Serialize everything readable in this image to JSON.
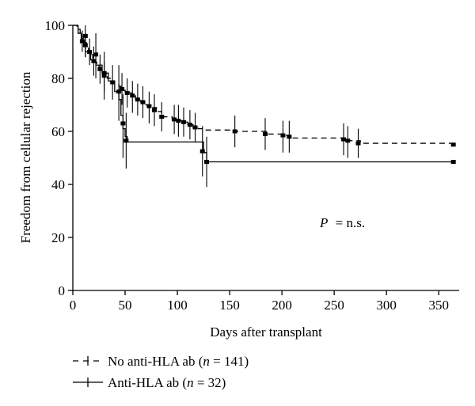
{
  "chart_data": {
    "type": "line",
    "title": "",
    "xlabel": "Days after transplant",
    "ylabel": "Freedom from cellular rejection",
    "xlim": [
      0,
      365
    ],
    "ylim": [
      0,
      100
    ],
    "xticks": [
      0,
      50,
      100,
      150,
      200,
      250,
      300,
      350
    ],
    "yticks": [
      0,
      20,
      40,
      60,
      80,
      100
    ],
    "grid": false,
    "legend_position": "bottom-left",
    "annotation": {
      "p_label": "P",
      "p_value": "= n.s."
    },
    "series": [
      {
        "name_prefix": "No anti-HLA ab (",
        "n_symbol": "n",
        "n_text": " = 141)",
        "style": "dashed",
        "x": [
          0,
          4,
          7,
          9,
          11,
          13,
          15,
          17,
          19,
          21,
          23,
          25,
          27,
          30,
          33,
          36,
          40,
          44,
          46,
          48,
          50,
          53,
          56,
          60,
          65,
          70,
          75,
          80,
          85,
          95,
          100,
          105,
          110,
          115,
          120,
          125,
          155,
          185,
          200,
          210,
          260,
          275,
          365
        ],
        "y": [
          100,
          98.5,
          97,
          95,
          93.5,
          92,
          90.5,
          89,
          87.5,
          86,
          85,
          84,
          82.5,
          81,
          80,
          79,
          78,
          77,
          76,
          75.5,
          75,
          74.5,
          73.5,
          72,
          71,
          70,
          69,
          67.5,
          65.5,
          64.5,
          64,
          63.5,
          62.5,
          61.5,
          61,
          60.5,
          60,
          59,
          58.5,
          57.5,
          56.5,
          55.5,
          55
        ],
        "censored": [
          {
            "x": 9,
            "y": 94,
            "lo": 90,
            "hi": 98
          },
          {
            "x": 12,
            "y": 92.5,
            "lo": 88,
            "hi": 97
          },
          {
            "x": 16,
            "y": 90,
            "lo": 85,
            "hi": 95
          },
          {
            "x": 20,
            "y": 86.5,
            "lo": 81,
            "hi": 92
          },
          {
            "x": 26,
            "y": 83.5,
            "lo": 78,
            "hi": 89
          },
          {
            "x": 30,
            "y": 81,
            "lo": 75,
            "hi": 86
          },
          {
            "x": 38,
            "y": 78.5,
            "lo": 72,
            "hi": 85
          },
          {
            "x": 47,
            "y": 76,
            "lo": 70,
            "hi": 82
          },
          {
            "x": 52,
            "y": 74.5,
            "lo": 69,
            "hi": 80
          },
          {
            "x": 57,
            "y": 73.5,
            "lo": 67,
            "hi": 79
          },
          {
            "x": 62,
            "y": 72,
            "lo": 66,
            "hi": 78
          },
          {
            "x": 67,
            "y": 71,
            "lo": 65,
            "hi": 77
          },
          {
            "x": 73,
            "y": 69.5,
            "lo": 63,
            "hi": 75
          },
          {
            "x": 78,
            "y": 68,
            "lo": 62,
            "hi": 74
          },
          {
            "x": 85,
            "y": 65.5,
            "lo": 60,
            "hi": 71
          },
          {
            "x": 97,
            "y": 64.5,
            "lo": 59,
            "hi": 70
          },
          {
            "x": 101,
            "y": 64,
            "lo": 58,
            "hi": 70
          },
          {
            "x": 106,
            "y": 63.5,
            "lo": 58,
            "hi": 69
          },
          {
            "x": 112,
            "y": 62.5,
            "lo": 57,
            "hi": 68
          },
          {
            "x": 117,
            "y": 61.5,
            "lo": 56,
            "hi": 67
          },
          {
            "x": 155,
            "y": 60,
            "lo": 54,
            "hi": 66
          },
          {
            "x": 184,
            "y": 59,
            "lo": 53,
            "hi": 65
          },
          {
            "x": 201,
            "y": 58.5,
            "lo": 52,
            "hi": 64
          },
          {
            "x": 207,
            "y": 58,
            "lo": 52,
            "hi": 64
          },
          {
            "x": 259,
            "y": 57,
            "lo": 51,
            "hi": 63
          },
          {
            "x": 263,
            "y": 56.5,
            "lo": 50,
            "hi": 62
          },
          {
            "x": 273,
            "y": 55.5,
            "lo": 50,
            "hi": 61
          },
          {
            "x": 364,
            "y": 55,
            "lo": 55,
            "hi": 55
          }
        ]
      },
      {
        "name_prefix": "Anti-HLA ab (",
        "n_symbol": "n",
        "n_text": " = 32)",
        "style": "solid",
        "x": [
          0,
          5,
          8,
          12,
          17,
          22,
          28,
          34,
          40,
          44,
          46,
          48,
          50,
          52,
          125,
          128,
          365
        ],
        "y": [
          100,
          97,
          94,
          90,
          87,
          85,
          82,
          79,
          75,
          72,
          66,
          61,
          58,
          56,
          52,
          48.5,
          48.5
        ],
        "censored": [
          {
            "x": 12,
            "y": 96,
            "lo": 88,
            "hi": 100
          },
          {
            "x": 22,
            "y": 89,
            "lo": 80,
            "hi": 97
          },
          {
            "x": 30,
            "y": 82,
            "lo": 72,
            "hi": 90
          },
          {
            "x": 44,
            "y": 75,
            "lo": 64,
            "hi": 85
          },
          {
            "x": 48,
            "y": 63,
            "lo": 50,
            "hi": 74
          },
          {
            "x": 51,
            "y": 56.5,
            "lo": 46,
            "hi": 67
          },
          {
            "x": 124,
            "y": 52.5,
            "lo": 43,
            "hi": 62
          },
          {
            "x": 128,
            "y": 48.5,
            "lo": 39,
            "hi": 58
          },
          {
            "x": 364,
            "y": 48.5,
            "lo": 48.5,
            "hi": 48.5
          }
        ]
      }
    ]
  }
}
